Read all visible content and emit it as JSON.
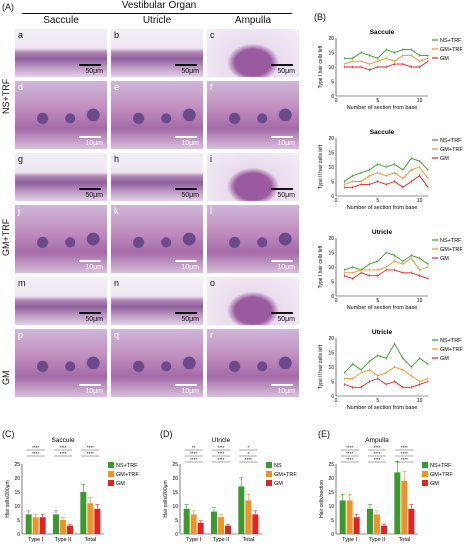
{
  "panel_labels": {
    "A": "(A)",
    "B": "(B)",
    "C": "(C)",
    "D": "(D)",
    "E": "(E)"
  },
  "header": {
    "organ": "Vestibular Organ",
    "saccule": "Saccule",
    "utricle": "Utricle",
    "ampulla": "Ampulla"
  },
  "row_groups": [
    "NS+TRF",
    "GM+TRF",
    "GM"
  ],
  "tiles": [
    {
      "sub": "a",
      "bar": "50μm"
    },
    {
      "sub": "b",
      "bar": "50μm"
    },
    {
      "sub": "c",
      "bar": "50μm"
    },
    {
      "sub": "d",
      "bar": "10μm"
    },
    {
      "sub": "e",
      "bar": "10μm"
    },
    {
      "sub": "f",
      "bar": "10μm"
    },
    {
      "sub": "g",
      "bar": "50μm"
    },
    {
      "sub": "h",
      "bar": "50μm"
    },
    {
      "sub": "i",
      "bar": "50μm"
    },
    {
      "sub": "j",
      "bar": "10μm"
    },
    {
      "sub": "k",
      "bar": "10μm"
    },
    {
      "sub": "l",
      "bar": "10μm"
    },
    {
      "sub": "m",
      "bar": "50μm"
    },
    {
      "sub": "n",
      "bar": "50μm"
    },
    {
      "sub": "o",
      "bar": "50μm"
    },
    {
      "sub": "p",
      "bar": "10μm"
    },
    {
      "sub": "q",
      "bar": "10μm"
    },
    {
      "sub": "r",
      "bar": "10μm"
    }
  ],
  "colors": {
    "ns": "#3a9a2e",
    "gmtrf": "#f0922a",
    "gm": "#e02424",
    "tissue": "#c890c0",
    "nucleus": "#3b2a6a"
  },
  "chart_data": [
    {
      "type": "line",
      "title": "Saccule",
      "ylabel": "Type I hair cells left",
      "xlabel": "Number of section from base",
      "x": [
        1,
        2,
        3,
        4,
        5,
        6,
        7,
        8,
        9,
        10,
        11
      ],
      "ylim": [
        0,
        20
      ],
      "xlim": [
        0,
        11
      ],
      "series": [
        {
          "name": "NS+TRF",
          "values": [
            13,
            13,
            15,
            14,
            13,
            16,
            15,
            16,
            16,
            14,
            14
          ]
        },
        {
          "name": "GM+TRF",
          "values": [
            11,
            12,
            12,
            11,
            12,
            13,
            12,
            14,
            14,
            12,
            13
          ]
        },
        {
          "name": "GM",
          "values": [
            10,
            10,
            10,
            9,
            10,
            10,
            11,
            11,
            10,
            10,
            12
          ]
        }
      ]
    },
    {
      "type": "line",
      "title": "Saccule",
      "ylabel": "Type II hair cells left",
      "xlabel": "Number of section from base",
      "x": [
        1,
        2,
        3,
        4,
        5,
        6,
        7,
        8,
        9,
        10,
        11
      ],
      "ylim": [
        0,
        20
      ],
      "xlim": [
        0,
        11
      ],
      "series": [
        {
          "name": "NS+TRF",
          "values": [
            5,
            7,
            8,
            9,
            11,
            10,
            11,
            9,
            13,
            12,
            9
          ]
        },
        {
          "name": "GM+TRF",
          "values": [
            4,
            5,
            5,
            7,
            8,
            7,
            8,
            6,
            9,
            10,
            6
          ]
        },
        {
          "name": "GM",
          "values": [
            3,
            3,
            4,
            4,
            5,
            4,
            5,
            3,
            5,
            7,
            3
          ]
        }
      ]
    },
    {
      "type": "line",
      "title": "Utricle",
      "ylabel": "Type I hair cells left",
      "xlabel": "Number of section from base",
      "x": [
        1,
        2,
        3,
        4,
        5,
        6,
        7,
        8,
        9,
        10,
        11
      ],
      "ylim": [
        0,
        20
      ],
      "xlim": [
        0,
        11
      ],
      "series": [
        {
          "name": "NS+TRF",
          "values": [
            9,
            10,
            9,
            11,
            12,
            15,
            14,
            12,
            14,
            13,
            11
          ]
        },
        {
          "name": "GM+TRF",
          "values": [
            8,
            8,
            9,
            9,
            9,
            10,
            12,
            11,
            13,
            9,
            10
          ]
        },
        {
          "name": "GM",
          "values": [
            7,
            6,
            8,
            7,
            7,
            9,
            9,
            8,
            8,
            7,
            6
          ]
        }
      ]
    },
    {
      "type": "line",
      "title": "Utricle",
      "ylabel": "Type II hair cells left",
      "xlabel": "Number of section from base",
      "x": [
        1,
        2,
        3,
        4,
        5,
        6,
        7,
        8,
        9,
        10,
        11
      ],
      "ylim": [
        0,
        20
      ],
      "xlim": [
        0,
        11
      ],
      "series": [
        {
          "name": "NS+TRF",
          "values": [
            8,
            11,
            9,
            12,
            14,
            13,
            18,
            13,
            10,
            13,
            11
          ]
        },
        {
          "name": "GM+TRF",
          "values": [
            6,
            6,
            8,
            9,
            7,
            8,
            10,
            9,
            7,
            5,
            6
          ]
        },
        {
          "name": "GM",
          "values": [
            4,
            3,
            3,
            5,
            6,
            4,
            5,
            3,
            3,
            4,
            5
          ]
        }
      ]
    },
    {
      "type": "bar",
      "title": "Saccule",
      "ylabel": "Hair cells/200μm",
      "categories": [
        "Type I",
        "Type II",
        "Total"
      ],
      "ylim": [
        0,
        25
      ],
      "series": [
        {
          "name": "NS+TRF",
          "values": [
            7,
            7,
            15
          ]
        },
        {
          "name": "GM+TRF",
          "values": [
            6,
            5,
            11
          ]
        },
        {
          "name": "GM",
          "values": [
            6,
            3,
            9
          ]
        }
      ],
      "sig": [
        "****",
        "****",
        "****",
        "****",
        "****",
        "****"
      ]
    },
    {
      "type": "bar",
      "title": "Utricle",
      "ylabel": "Hair cells/200μm",
      "categories": [
        "Type I",
        "Type II",
        "Total"
      ],
      "ylim": [
        0,
        25
      ],
      "series": [
        {
          "name": "NS",
          "values": [
            9,
            8,
            17
          ]
        },
        {
          "name": "GM+TRF",
          "values": [
            7,
            6,
            12
          ]
        },
        {
          "name": "GM",
          "values": [
            4,
            3,
            7
          ]
        }
      ],
      "sig": [
        "**",
        "****",
        "****",
        "****",
        "****",
        "****",
        "*",
        "*",
        "****"
      ]
    },
    {
      "type": "bar",
      "title": "Ampulla",
      "ylabel": "Hair cells/section",
      "categories": [
        "Type I",
        "Type II",
        "Total"
      ],
      "ylim": [
        0,
        25
      ],
      "series": [
        {
          "name": "NS+TRF",
          "values": [
            12,
            9,
            22
          ]
        },
        {
          "name": "GM+TRF",
          "values": [
            12,
            7,
            19
          ]
        },
        {
          "name": "GM",
          "values": [
            6,
            3,
            9
          ]
        }
      ],
      "sig": [
        "****",
        "****",
        "****",
        "****",
        "****",
        "****",
        "****",
        "****",
        "****"
      ]
    }
  ]
}
